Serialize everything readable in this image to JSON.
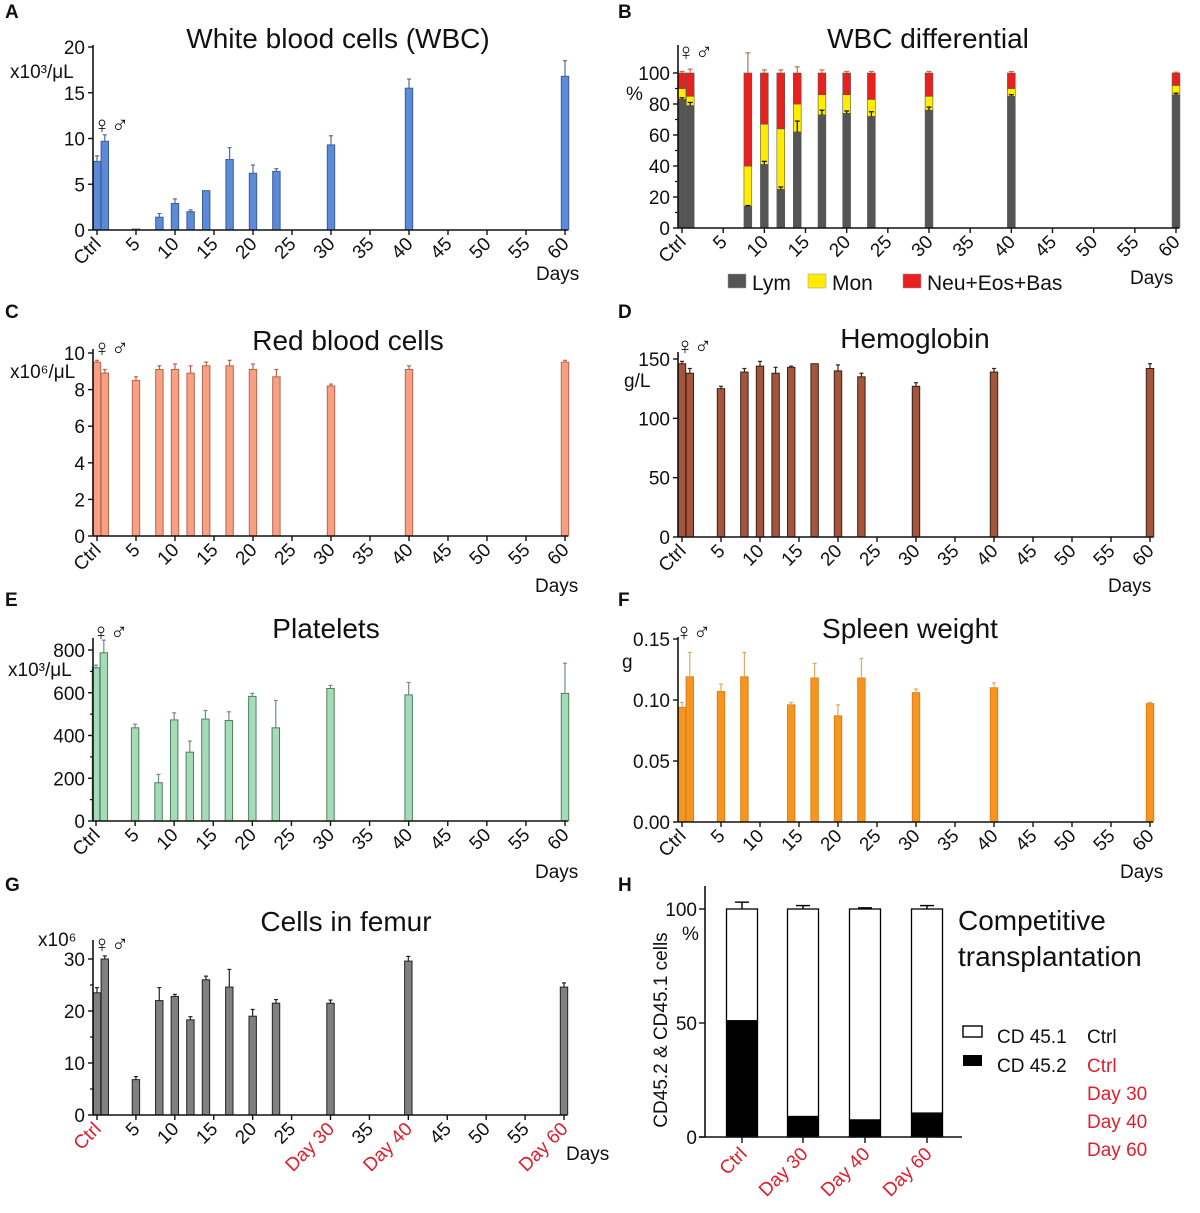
{
  "highlight_color": "#e01e2e",
  "chart_data": [
    {
      "panel": "A",
      "type": "bar",
      "title": "White blood cells (WBC)",
      "ylabel": "x10³/μL",
      "xlabel": "Days",
      "sex_marker": "♀♂",
      "ylim": [
        0,
        20
      ],
      "yticks": [
        0,
        5,
        10,
        15,
        20
      ],
      "xticks": [
        "Ctrl",
        "5",
        "10",
        "15",
        "20",
        "25",
        "30",
        "35",
        "40",
        "45",
        "50",
        "55",
        "60"
      ],
      "color": "#5b8bd6",
      "edge": "#3b5d9c",
      "err_color": "#5a6a90",
      "x": [
        "Ctrl-F",
        "Ctrl-M",
        5,
        8,
        10,
        12,
        14,
        17,
        20,
        23,
        30,
        40,
        60
      ],
      "values": [
        7.5,
        9.7,
        0.1,
        1.4,
        2.9,
        2.0,
        4.3,
        7.7,
        6.2,
        6.4,
        9.3,
        15.5,
        16.8
      ],
      "err_top": [
        8.1,
        10.4,
        0.1,
        1.8,
        3.4,
        2.2,
        4.3,
        9.0,
        7.1,
        6.7,
        10.3,
        16.5,
        18.5
      ]
    },
    {
      "panel": "B",
      "type": "stacked-bar",
      "title": "WBC differential",
      "ylabel": "%",
      "xlabel": "Days",
      "sex_marker": "♀♂",
      "ylim": [
        0,
        100
      ],
      "yticks": [
        0,
        20,
        40,
        60,
        80,
        100
      ],
      "xticks": [
        "Ctrl",
        "5",
        "10",
        "15",
        "20",
        "25",
        "30",
        "35",
        "40",
        "45",
        "50",
        "55",
        "60"
      ],
      "x": [
        "Ctrl-F",
        "Ctrl-M",
        8,
        10,
        12,
        14,
        17,
        20,
        23,
        30,
        40,
        60
      ],
      "series": [
        {
          "name": "Lym",
          "color": "#555555",
          "values": [
            83,
            79,
            14,
            41,
            25,
            62,
            73,
            74,
            72,
            76,
            85,
            86
          ],
          "err_top": [
            84,
            81,
            14.5,
            43,
            26.5,
            69,
            76,
            75.5,
            75,
            78,
            86,
            87
          ]
        },
        {
          "name": "Mon",
          "color": "#ffec00",
          "values": [
            7,
            6,
            26,
            26,
            39,
            18,
            13,
            12,
            11,
            9,
            5,
            6
          ]
        },
        {
          "name": "Neu+Eos+Bas",
          "color": "#e8201e",
          "values": [
            10,
            15,
            60,
            33,
            36,
            20,
            14,
            14,
            17,
            15,
            10,
            8
          ],
          "err_top": [
            101,
            102.5,
            113,
            102,
            102,
            104,
            102,
            101,
            101,
            101,
            101,
            100.5
          ]
        }
      ],
      "legend": "bottom"
    },
    {
      "panel": "C",
      "type": "bar",
      "title": "Red blood cells",
      "ylabel": "x10⁶/μL",
      "xlabel": "Days",
      "sex_marker": "♀♂",
      "ylim": [
        0,
        10
      ],
      "yticks": [
        0,
        2,
        4,
        6,
        8,
        10
      ],
      "xticks": [
        "Ctrl",
        "5",
        "10",
        "15",
        "20",
        "25",
        "30",
        "35",
        "40",
        "45",
        "50",
        "55",
        "60"
      ],
      "color": "#f7a084",
      "edge": "#b8654c",
      "err_color": "#b8654c",
      "x": [
        "Ctrl-F",
        "Ctrl-M",
        5,
        8,
        10,
        12,
        14,
        17,
        20,
        23,
        30,
        40,
        60
      ],
      "values": [
        9.5,
        8.9,
        8.5,
        9.1,
        9.1,
        8.9,
        9.3,
        9.3,
        9.1,
        8.7,
        8.2,
        9.1,
        9.5
      ],
      "err_top": [
        9.6,
        9.1,
        8.7,
        9.3,
        9.4,
        9.3,
        9.5,
        9.6,
        9.4,
        9.1,
        8.3,
        9.3,
        9.6
      ]
    },
    {
      "panel": "D",
      "type": "bar",
      "title": "Hemoglobin",
      "ylabel": "g/L",
      "xlabel": "Days",
      "sex_marker": "♀♂",
      "ylim": [
        0,
        150
      ],
      "yticks": [
        0,
        50,
        100,
        150
      ],
      "xticks": [
        "Ctrl",
        "5",
        "10",
        "15",
        "20",
        "25",
        "30",
        "35",
        "40",
        "45",
        "50",
        "55",
        "60"
      ],
      "color": "#a4553d",
      "edge": "#3a2018",
      "err_color": "#3a2018",
      "x": [
        "Ctrl-F",
        "Ctrl-M",
        5,
        8,
        10,
        12,
        14,
        17,
        20,
        23,
        30,
        40,
        60
      ],
      "values": [
        146,
        138,
        125,
        139,
        144,
        138,
        143,
        146,
        140,
        135,
        127,
        139,
        142
      ],
      "err_top": [
        148,
        142,
        127,
        142,
        148,
        143,
        144,
        146,
        145,
        138,
        130,
        142,
        146
      ]
    },
    {
      "panel": "E",
      "type": "bar",
      "title": "Platelets",
      "ylabel": "x10³/μL",
      "xlabel": "Days",
      "sex_marker": "♀♂",
      "ylim": [
        0,
        800
      ],
      "yticks": [
        0,
        200,
        400,
        600,
        800
      ],
      "xticks": [
        "Ctrl",
        "5",
        "10",
        "15",
        "20",
        "25",
        "30",
        "35",
        "40",
        "45",
        "50",
        "55",
        "60"
      ],
      "color": "#a6dbb8",
      "edge": "#4d7f5e",
      "err_color": "#7a8a80",
      "x": [
        "Ctrl-F",
        "Ctrl-M",
        5,
        8,
        10,
        12,
        14,
        17,
        20,
        23,
        30,
        40,
        60
      ],
      "values": [
        717,
        787,
        436,
        179,
        473,
        322,
        477,
        470,
        583,
        436,
        620,
        590,
        597
      ],
      "err_top": [
        729,
        846,
        453,
        218,
        506,
        374,
        517,
        511,
        597,
        564,
        634,
        648,
        738
      ]
    },
    {
      "panel": "F",
      "type": "bar",
      "title": "Spleen weight",
      "ylabel": "g",
      "xlabel": "Days",
      "sex_marker": "♀♂",
      "ylim": [
        0,
        0.15
      ],
      "yticks": [
        "0.00",
        "0.05",
        "0.10",
        "0.15"
      ],
      "xticks": [
        "Ctrl",
        "5",
        "10",
        "15",
        "20",
        "25",
        "30",
        "35",
        "40",
        "45",
        "50",
        "55",
        "60"
      ],
      "color": "#f7961e",
      "edge": "#d9801a",
      "err_color": "#e0a868",
      "x": [
        "Ctrl-F",
        "Ctrl-M",
        5,
        8,
        14,
        17,
        20,
        23,
        30,
        40,
        60
      ],
      "values": [
        0.094,
        0.119,
        0.107,
        0.119,
        0.096,
        0.118,
        0.087,
        0.118,
        0.106,
        0.11,
        0.097
      ],
      "err_top": [
        0.098,
        0.139,
        0.113,
        0.139,
        0.098,
        0.13,
        0.096,
        0.134,
        0.109,
        0.114,
        0.098
      ]
    },
    {
      "panel": "G",
      "type": "bar",
      "title": "Cells in femur",
      "ylabel": "x10⁶",
      "xlabel": "Days",
      "sex_marker": "♀♂",
      "ylim": [
        0,
        30
      ],
      "yticks": [
        0,
        10,
        20,
        30
      ],
      "xticks": [
        "Ctrl",
        "5",
        "10",
        "15",
        "20",
        "25",
        "Day 30",
        "35",
        "Day 40",
        "45",
        "50",
        "55",
        "Day 60"
      ],
      "highlighted_xticks": [
        "Ctrl",
        "Day 30",
        "Day 40",
        "Day 60"
      ],
      "color": "#808080",
      "edge": "#222222",
      "err_color": "#222222",
      "x": [
        "Ctrl-F",
        "Ctrl-M",
        5,
        8,
        10,
        12,
        14,
        17,
        20,
        23,
        30,
        40,
        60
      ],
      "values": [
        23.5,
        30.0,
        6.8,
        22.0,
        22.8,
        18.3,
        26.0,
        24.6,
        19.0,
        21.5,
        21.5,
        29.6,
        24.6
      ],
      "err_top": [
        24.5,
        30.6,
        7.4,
        24.5,
        23.2,
        18.9,
        26.7,
        28.0,
        20.3,
        22.2,
        22.1,
        30.5,
        25.4
      ]
    },
    {
      "panel": "H",
      "type": "stacked-bar",
      "title": [
        "Competitive",
        "transplantation"
      ],
      "ylabel": "CD45.2 & CD45.1 cells",
      "yunit": "%",
      "ylim": [
        0,
        100
      ],
      "yticks": [
        0,
        50,
        100
      ],
      "categories": [
        "Ctrl",
        "Day 30",
        "Day 40",
        "Day 60"
      ],
      "series": [
        {
          "name": "CD 45.2",
          "color": "#000000",
          "values": [
            51,
            9,
            7.5,
            10.5
          ],
          "err_top": [
            54,
            11,
            8,
            12.5
          ]
        },
        {
          "name": "CD 45.1",
          "color": "#ffffff",
          "values": [
            49,
            91,
            92.5,
            89.5
          ],
          "err_top": [
            103,
            101.5,
            100.5,
            101.5
          ]
        }
      ],
      "legend": {
        "cd451": {
          "label": "CD 45.1",
          "sample": "Ctrl"
        },
        "cd452": {
          "label": "CD 45.2",
          "samples": [
            "Ctrl",
            "Day 30",
            "Day 40",
            "Day 60"
          ]
        }
      }
    }
  ]
}
